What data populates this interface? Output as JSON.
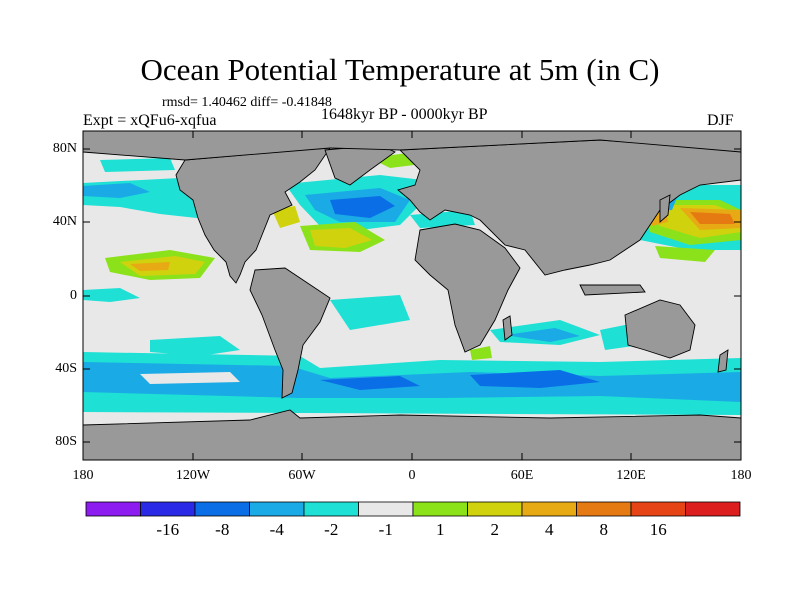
{
  "title": "Ocean Potential Temperature at 5m (in C)",
  "stats": "rmsd= 1.40462 diff= -0.41848",
  "experiment": "Expt = xQFu6-xqfua",
  "period": "1648kyr BP - 0000kyr BP",
  "season": "DJF",
  "lat_labels": [
    "80N",
    "40N",
    "0",
    "40S",
    "80S"
  ],
  "lon_labels": [
    "180",
    "120W",
    "60W",
    "0",
    "60E",
    "120E",
    "180"
  ],
  "colorbar": {
    "colors": [
      "#8c1cf0",
      "#2a2ae6",
      "#0a6ee6",
      "#1aaae6",
      "#1ee0d4",
      "#e8e8e8",
      "#8ce21a",
      "#d0d20e",
      "#e8aa14",
      "#e67a12",
      "#e64414",
      "#dc1e1e"
    ],
    "labels": [
      "-16",
      "-8",
      "-4",
      "-2",
      "-1",
      "1",
      "2",
      "4",
      "8",
      "16"
    ]
  },
  "colors": {
    "land": "#999999",
    "no_change": "#e8e8e8",
    "coast": "#000000"
  }
}
